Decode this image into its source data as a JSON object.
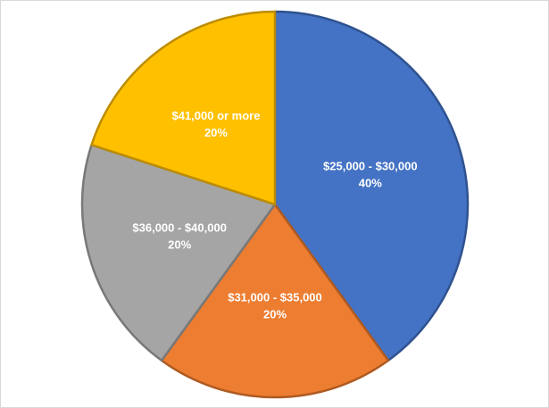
{
  "chart_data": {
    "type": "pie",
    "title": "",
    "slices": [
      {
        "label": "$25,000 - $30,000",
        "value": 40,
        "percent_label": "40%",
        "color": "#4472C4",
        "edge": "#2F528F"
      },
      {
        "label": "$31,000 - $35,000",
        "value": 20,
        "percent_label": "20%",
        "color": "#ED7D31",
        "edge": "#AE5A21"
      },
      {
        "label": "$36,000 - $40,000",
        "value": 20,
        "percent_label": "20%",
        "color": "#A5A5A5",
        "edge": "#787878"
      },
      {
        "label": "$41,000 or more",
        "value": 20,
        "percent_label": "20%",
        "color": "#FFC000",
        "edge": "#BC8C00"
      }
    ],
    "start_angle_deg": 0,
    "direction": "clockwise",
    "legend": "none",
    "data_labels": "inside"
  }
}
